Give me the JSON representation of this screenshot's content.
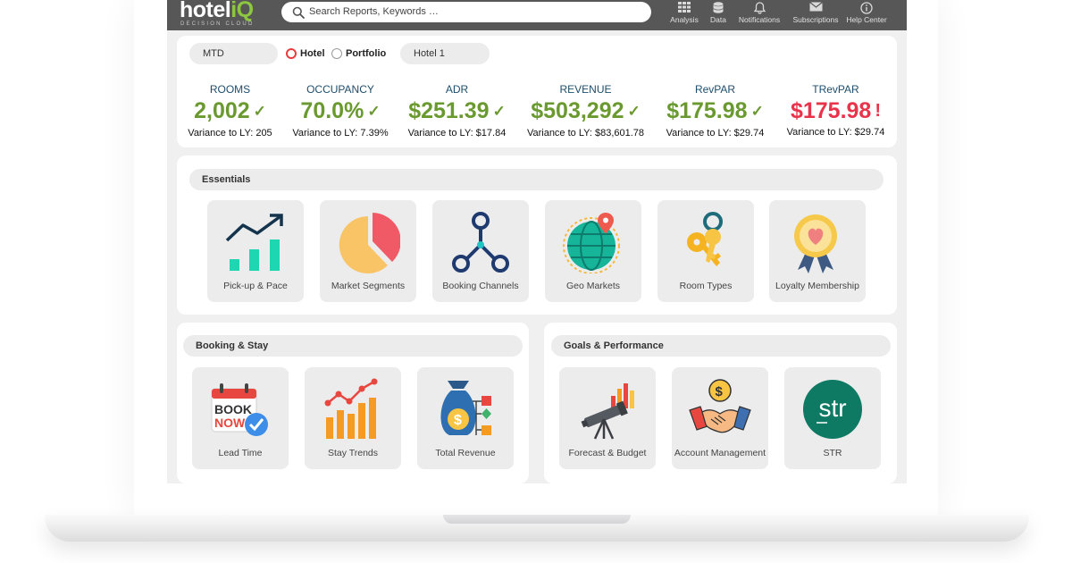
{
  "brand": {
    "name_main": "hotel",
    "name_accent": "iQ",
    "tagline": "DECISION CLOUD"
  },
  "search": {
    "placeholder": "Search Reports, Keywords …"
  },
  "nav": [
    {
      "label": "Analysis",
      "icon": "grid-icon"
    },
    {
      "label": "Data",
      "icon": "database-icon"
    },
    {
      "label": "Notifications",
      "icon": "bell-icon"
    },
    {
      "label": "Subscriptions",
      "icon": "envelope-icon"
    },
    {
      "label": "Help Center",
      "icon": "info-icon"
    }
  ],
  "filters": {
    "period": "MTD",
    "scope_options": [
      {
        "label": "Hotel",
        "selected": true
      },
      {
        "label": "Portfolio",
        "selected": false
      }
    ],
    "property": "Hotel 1"
  },
  "kpis": [
    {
      "label": "ROOMS",
      "value": "2,002",
      "status": "ok",
      "variance": "Variance to LY: 205"
    },
    {
      "label": "OCCUPANCY",
      "value": "70.0%",
      "status": "ok",
      "variance": "Variance to LY: 7.39%"
    },
    {
      "label": "ADR",
      "value": "$251.39",
      "status": "ok",
      "variance": "Variance to LY: $17.84"
    },
    {
      "label": "REVENUE",
      "value": "$503,292",
      "status": "ok",
      "variance": "Variance to LY: $83,601.78"
    },
    {
      "label": "RevPAR",
      "value": "$175.98",
      "status": "ok",
      "variance": "Variance to LY: $29.74"
    },
    {
      "label": "TRevPAR",
      "value": "$175.98",
      "status": "alert",
      "variance": "Variance to LY: $29.74"
    }
  ],
  "status_marks": {
    "ok": "✓",
    "alert": "!"
  },
  "colors": {
    "topbar": "#575757",
    "brand_accent": "#8dc63f",
    "ok": "#6a9a2f",
    "alert": "#e8334a",
    "label": "#1f4d6b"
  },
  "sections": {
    "essentials": {
      "title": "Essentials",
      "tiles": [
        {
          "label": "Pick-up & Pace",
          "icon": "pickup-chart-icon"
        },
        {
          "label": "Market Segments",
          "icon": "pie-chart-icon"
        },
        {
          "label": "Booking Channels",
          "icon": "channels-network-icon"
        },
        {
          "label": "Geo Markets",
          "icon": "globe-pin-icon"
        },
        {
          "label": "Room Types",
          "icon": "keys-icon"
        },
        {
          "label": "Loyalty Membership",
          "icon": "heart-badge-icon"
        }
      ]
    },
    "booking_stay": {
      "title": "Booking & Stay",
      "tiles": [
        {
          "label": "Lead Time",
          "icon": "book-now-calendar-icon"
        },
        {
          "label": "Stay Trends",
          "icon": "trend-bars-icon"
        },
        {
          "label": "Total Revenue",
          "icon": "money-bag-icon"
        }
      ]
    },
    "goals_performance": {
      "title": "Goals & Performance",
      "tiles": [
        {
          "label": "Forecast & Budget",
          "icon": "telescope-icon"
        },
        {
          "label": "Account Management",
          "icon": "handshake-icon"
        },
        {
          "label": "STR",
          "icon": "str-logo-icon",
          "logo_text": "str"
        }
      ]
    }
  }
}
